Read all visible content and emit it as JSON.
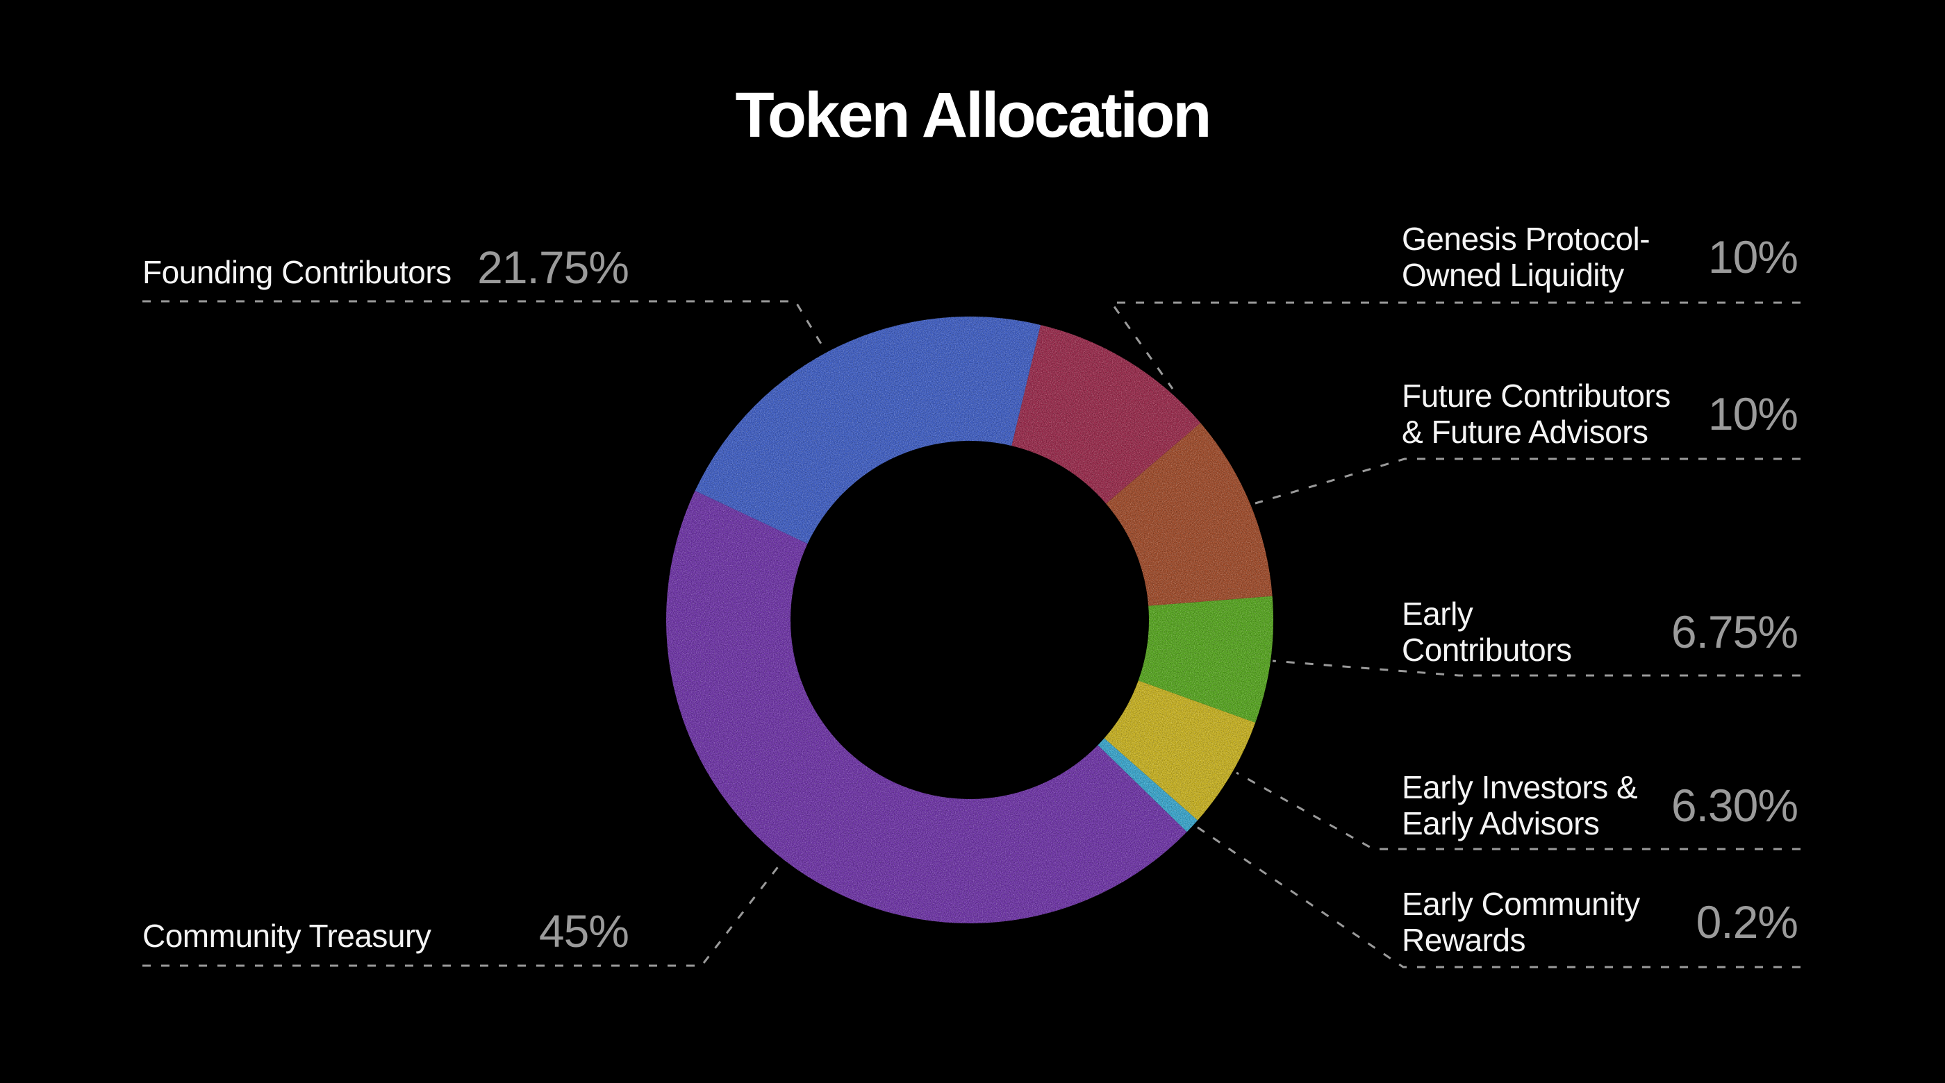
{
  "title": "Token Allocation",
  "chart_data": {
    "type": "pie",
    "subtype": "donut",
    "title": "Token Allocation",
    "unit": "%",
    "start_angle_deg": 13.5,
    "direction": "clockwise",
    "inner_radius_ratio": 0.59,
    "background_color": "#000000",
    "leader_line_color": "#9a9a9a",
    "legend_position": "callouts-both-sides",
    "slices": [
      {
        "label": "Genesis Protocol-Owned Liquidity",
        "value": 10,
        "display_value": "10%",
        "color": "#99284a"
      },
      {
        "label": "Future Contributors & Future Advisors",
        "value": 10,
        "display_value": "10%",
        "color": "#a04a28"
      },
      {
        "label": "Early Contributors",
        "value": 6.75,
        "display_value": "6.75%",
        "color": "#55a71d"
      },
      {
        "label": "Early Investors & Early Advisors",
        "value": 6.3,
        "display_value": "6.30%",
        "color": "#cbb41f"
      },
      {
        "label": "Early Community Rewards",
        "value": 0.2,
        "display_value": "0.2%",
        "color": "#38a8d0"
      },
      {
        "label": "Community Treasury",
        "value": 45,
        "display_value": "45%",
        "color": "#6e32a8"
      },
      {
        "label": "Founding Contributors",
        "value": 21.75,
        "display_value": "21.75%",
        "color": "#3e5ec6"
      }
    ]
  },
  "callouts": {
    "left": [
      {
        "lines": [
          "Founding Contributors"
        ],
        "pct": "21.75%"
      },
      {
        "lines": [
          "Community Treasury"
        ],
        "pct": "45%"
      }
    ],
    "right": [
      {
        "lines": [
          "Genesis Protocol-",
          "Owned Liquidity"
        ],
        "pct": "10%"
      },
      {
        "lines": [
          "Future Contributors",
          "& Future Advisors"
        ],
        "pct": "10%"
      },
      {
        "lines": [
          "Early",
          "Contributors"
        ],
        "pct": "6.75%"
      },
      {
        "lines": [
          "Early Investors &",
          "Early Advisors"
        ],
        "pct": "6.30%"
      },
      {
        "lines": [
          "Early Community",
          "Rewards"
        ],
        "pct": "0.2%"
      }
    ]
  },
  "text_colors": {
    "title": "#ffffff",
    "label": "#f4f4f4",
    "percent": "#9b9b9b"
  }
}
